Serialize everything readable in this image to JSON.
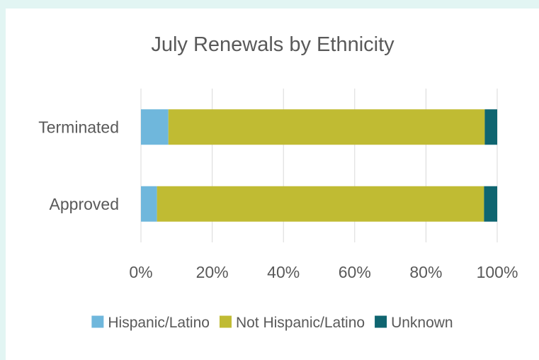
{
  "chart_data": {
    "type": "bar",
    "orientation": "horizontal",
    "stacked": "percent",
    "title": "July Renewals by Ethnicity",
    "xlabel": "",
    "ylabel": "",
    "categories": [
      "Terminated",
      "Approved"
    ],
    "xlim": [
      0,
      100
    ],
    "x_ticks": [
      "0%",
      "20%",
      "40%",
      "60%",
      "80%",
      "100%"
    ],
    "grid": "vertical",
    "legend_position": "bottom",
    "series": [
      {
        "name": "Hispanic/Latino",
        "color": "#6fb7dc",
        "values": [
          7.7,
          4.5
        ]
      },
      {
        "name": "Not Hispanic/Latino",
        "color": "#c0bb33",
        "values": [
          88.8,
          91.8
        ]
      },
      {
        "name": "Unknown",
        "color": "#0f6570",
        "values": [
          3.5,
          3.7
        ]
      }
    ]
  }
}
